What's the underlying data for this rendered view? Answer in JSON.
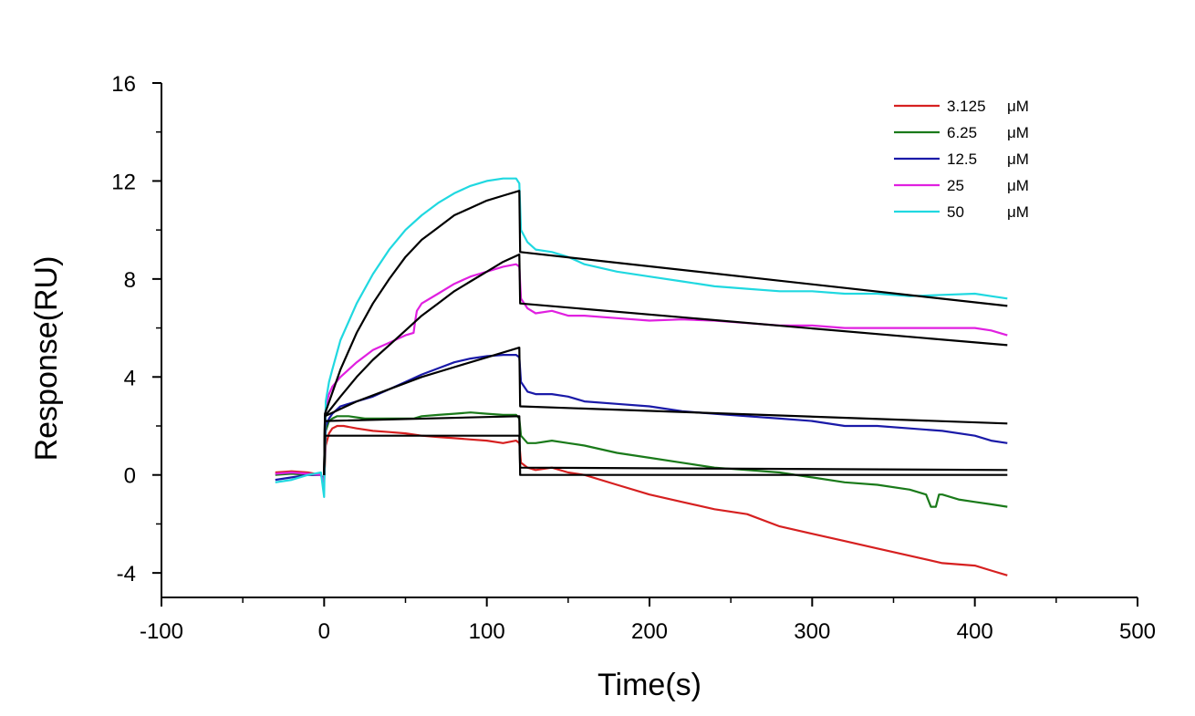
{
  "chart_data": {
    "type": "line",
    "xlabel": "Time(s)",
    "ylabel": "Response(RU)",
    "xlim": [
      -100,
      500
    ],
    "ylim": [
      -5,
      16
    ],
    "xticks": [
      -100,
      0,
      100,
      200,
      300,
      400,
      500
    ],
    "yticks": [
      -4,
      0,
      4,
      8,
      12,
      16
    ],
    "grid": false,
    "legend_position": "top-right",
    "series": [
      {
        "name": "3.125 μM",
        "color": "#d62020",
        "x": [
          -30,
          -20,
          -10,
          -2,
          0,
          1,
          3,
          5,
          8,
          12,
          20,
          30,
          40,
          50,
          60,
          70,
          80,
          90,
          100,
          110,
          118,
          120,
          121,
          125,
          130,
          140,
          150,
          160,
          180,
          200,
          220,
          240,
          260,
          280,
          300,
          320,
          340,
          360,
          380,
          400,
          410,
          420
        ],
        "y": [
          0.1,
          0.15,
          0.1,
          0.0,
          -0.3,
          1.2,
          1.7,
          1.9,
          2.0,
          2.0,
          1.9,
          1.8,
          1.75,
          1.7,
          1.6,
          1.55,
          1.5,
          1.45,
          1.4,
          1.3,
          1.4,
          1.3,
          0.5,
          0.3,
          0.2,
          0.3,
          0.1,
          0.0,
          -0.4,
          -0.8,
          -1.1,
          -1.4,
          -1.6,
          -2.1,
          -2.4,
          -2.7,
          -3.0,
          -3.3,
          -3.6,
          -3.7,
          -3.9,
          -4.1
        ]
      },
      {
        "name": "6.25 μM",
        "color": "#1a7a1a",
        "x": [
          -30,
          -20,
          -10,
          -2,
          0,
          1,
          3,
          5,
          8,
          15,
          25,
          40,
          55,
          60,
          70,
          80,
          90,
          100,
          110,
          118,
          120,
          121,
          125,
          130,
          140,
          150,
          160,
          180,
          200,
          220,
          240,
          260,
          280,
          300,
          320,
          340,
          360,
          370,
          373,
          376,
          378,
          380,
          390,
          400,
          410,
          420
        ],
        "y": [
          0.0,
          0.05,
          0.0,
          0.0,
          -0.2,
          1.8,
          2.2,
          2.3,
          2.4,
          2.4,
          2.3,
          2.3,
          2.3,
          2.4,
          2.45,
          2.5,
          2.55,
          2.5,
          2.45,
          2.45,
          2.3,
          1.6,
          1.3,
          1.3,
          1.4,
          1.3,
          1.2,
          0.9,
          0.7,
          0.5,
          0.3,
          0.2,
          0.1,
          -0.1,
          -0.3,
          -0.4,
          -0.6,
          -0.8,
          -1.3,
          -1.3,
          -0.8,
          -0.8,
          -1.0,
          -1.1,
          -1.2,
          -1.3
        ]
      },
      {
        "name": "12.5 μM",
        "color": "#1a1aa8",
        "x": [
          -30,
          -20,
          -10,
          -2,
          0,
          1,
          3,
          5,
          10,
          20,
          30,
          40,
          50,
          60,
          70,
          80,
          90,
          100,
          110,
          118,
          120,
          121,
          125,
          130,
          140,
          150,
          160,
          180,
          200,
          220,
          240,
          260,
          280,
          300,
          320,
          340,
          360,
          380,
          400,
          410,
          420
        ],
        "y": [
          -0.2,
          -0.1,
          0.0,
          0.0,
          -0.2,
          2.0,
          2.3,
          2.5,
          2.8,
          3.0,
          3.2,
          3.5,
          3.8,
          4.1,
          4.35,
          4.6,
          4.75,
          4.85,
          4.9,
          4.9,
          4.8,
          3.8,
          3.4,
          3.3,
          3.3,
          3.2,
          3.0,
          2.9,
          2.8,
          2.6,
          2.5,
          2.4,
          2.3,
          2.2,
          2.0,
          2.0,
          1.9,
          1.8,
          1.6,
          1.4,
          1.3
        ]
      },
      {
        "name": "25 μM",
        "color": "#e020e0",
        "x": [
          -30,
          -20,
          -10,
          -2,
          0,
          1,
          3,
          5,
          10,
          20,
          30,
          40,
          50,
          55,
          56,
          57,
          60,
          70,
          80,
          90,
          100,
          110,
          118,
          120,
          121,
          125,
          130,
          140,
          150,
          160,
          180,
          200,
          220,
          240,
          260,
          280,
          300,
          320,
          340,
          360,
          380,
          400,
          410,
          420
        ],
        "y": [
          0.05,
          0.1,
          0.05,
          0.0,
          -0.3,
          2.8,
          3.3,
          3.6,
          4.0,
          4.6,
          5.1,
          5.4,
          5.7,
          5.8,
          6.3,
          6.7,
          7.0,
          7.4,
          7.8,
          8.1,
          8.3,
          8.5,
          8.6,
          8.5,
          7.2,
          6.8,
          6.6,
          6.7,
          6.5,
          6.5,
          6.4,
          6.3,
          6.35,
          6.3,
          6.2,
          6.1,
          6.1,
          6.0,
          6.0,
          6.0,
          6.0,
          6.0,
          5.9,
          5.7
        ]
      },
      {
        "name": "50 μM",
        "color": "#20d8e0",
        "x": [
          -30,
          -20,
          -10,
          -2,
          0,
          1,
          3,
          5,
          10,
          20,
          30,
          40,
          50,
          60,
          70,
          80,
          90,
          100,
          110,
          118,
          120,
          121,
          125,
          130,
          140,
          150,
          160,
          180,
          200,
          220,
          240,
          260,
          280,
          300,
          320,
          340,
          360,
          380,
          400,
          410,
          420
        ],
        "y": [
          -0.3,
          -0.2,
          0.0,
          0.1,
          -0.9,
          3.0,
          3.8,
          4.3,
          5.5,
          7.0,
          8.2,
          9.2,
          10.0,
          10.6,
          11.1,
          11.5,
          11.8,
          12.0,
          12.1,
          12.1,
          11.9,
          10.0,
          9.5,
          9.2,
          9.1,
          8.9,
          8.6,
          8.3,
          8.1,
          7.9,
          7.7,
          7.6,
          7.5,
          7.5,
          7.4,
          7.4,
          7.3,
          7.35,
          7.4,
          7.3,
          7.2
        ]
      }
    ],
    "fits": [
      {
        "color": "#000000",
        "x": [
          0,
          0.5,
          120,
          120.5,
          420
        ],
        "y": [
          0,
          1.6,
          1.6,
          0.3,
          0.2
        ]
      },
      {
        "color": "#000000",
        "x": [
          0,
          0.5,
          120,
          120.5,
          420
        ],
        "y": [
          0,
          2.2,
          2.4,
          0.0,
          0.0
        ]
      },
      {
        "color": "#000000",
        "x": [
          0,
          0.5,
          20,
          40,
          60,
          80,
          100,
          120,
          120.5,
          420
        ],
        "y": [
          0,
          2.4,
          3.0,
          3.5,
          4.0,
          4.4,
          4.8,
          5.2,
          2.8,
          2.1
        ]
      },
      {
        "color": "#000000",
        "x": [
          0,
          0.5,
          10,
          20,
          30,
          40,
          50,
          60,
          70,
          80,
          90,
          100,
          110,
          120,
          120.5,
          420
        ],
        "y": [
          0,
          2.4,
          3.2,
          4.0,
          4.7,
          5.3,
          5.9,
          6.5,
          7.0,
          7.5,
          7.9,
          8.3,
          8.7,
          9.0,
          7.0,
          5.3
        ]
      },
      {
        "color": "#000000",
        "x": [
          0,
          0.5,
          10,
          20,
          30,
          40,
          50,
          60,
          70,
          80,
          90,
          100,
          110,
          120,
          120.5,
          420
        ],
        "y": [
          0,
          2.5,
          4.3,
          5.8,
          7.0,
          8.0,
          8.9,
          9.6,
          10.1,
          10.6,
          10.9,
          11.2,
          11.4,
          11.6,
          9.1,
          6.9
        ]
      }
    ]
  }
}
